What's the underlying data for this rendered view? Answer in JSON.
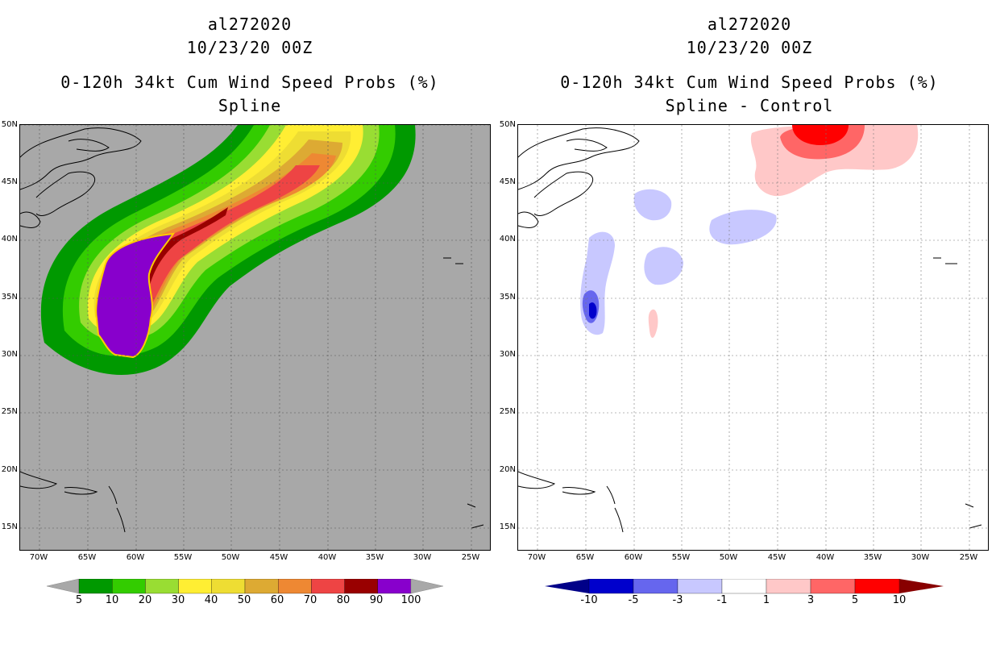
{
  "left": {
    "storm_id": "al272020",
    "datetime": "10/23/20 00Z",
    "product": "0-120h 34kt Cum Wind Speed Probs (%)",
    "method": "Spline",
    "colorbar": {
      "labels": [
        "5",
        "10",
        "20",
        "30",
        "40",
        "50",
        "60",
        "70",
        "80",
        "90",
        "100"
      ],
      "colors": [
        "#009900",
        "#33cc00",
        "#99dd33",
        "#ffee33",
        "#eedd33",
        "#ddaa33",
        "#ee8833",
        "#ee4444",
        "#990000",
        "#8800cc"
      ]
    }
  },
  "right": {
    "storm_id": "al272020",
    "datetime": "10/23/20 00Z",
    "product": "0-120h 34kt Cum Wind Speed Probs (%)",
    "method": "Spline - Control",
    "colorbar": {
      "labels": [
        "-10",
        "-5",
        "-3",
        "-1",
        "1",
        "3",
        "5",
        "10"
      ],
      "colors": [
        "#0000cc",
        "#6666ee",
        "#c8c8ff",
        "#ffffff",
        "#ffc8c8",
        "#ff6666",
        "#ff0000"
      ],
      "end_low": "#000088",
      "end_high": "#880000"
    }
  },
  "axes": {
    "lat_labels": [
      "50N",
      "45N",
      "40N",
      "35N",
      "30N",
      "25N",
      "20N",
      "15N"
    ],
    "lon_labels": [
      "70W",
      "65W",
      "60W",
      "55W",
      "50W",
      "45W",
      "40W",
      "35W",
      "30W",
      "25W"
    ]
  }
}
